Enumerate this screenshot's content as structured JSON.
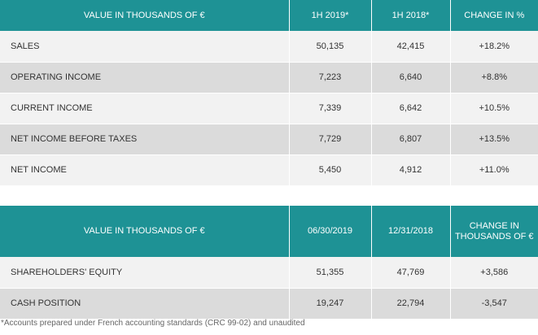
{
  "income_table": {
    "headers": [
      "VALUE IN THOUSANDS OF €",
      "1H 2019*",
      "1H 2018*",
      "CHANGE IN %"
    ],
    "rows": [
      {
        "label": "SALES",
        "h1_2019": "50,135",
        "h1_2018": "42,415",
        "change": "+18.2%"
      },
      {
        "label": "OPERATING INCOME",
        "h1_2019": "7,223",
        "h1_2018": "6,640",
        "change": "+8.8%"
      },
      {
        "label": "CURRENT INCOME",
        "h1_2019": "7,339",
        "h1_2018": "6,642",
        "change": "+10.5%"
      },
      {
        "label": "NET INCOME BEFORE TAXES",
        "h1_2019": "7,729",
        "h1_2018": "6,807",
        "change": "+13.5%"
      },
      {
        "label": "NET INCOME",
        "h1_2019": "5,450",
        "h1_2018": "4,912",
        "change": "+11.0%"
      }
    ]
  },
  "balance_table": {
    "headers": [
      "VALUE IN THOUSANDS OF €",
      "06/30/2019",
      "12/31/2018",
      "CHANGE IN THOUSANDS OF €"
    ],
    "rows": [
      {
        "label": "SHAREHOLDERS' EQUITY",
        "d2019": "51,355",
        "d2018": "47,769",
        "change": "+3,586"
      },
      {
        "label": "CASH POSITION",
        "d2019": "19,247",
        "d2018": "22,794",
        "change": "-3,547"
      }
    ]
  },
  "footnote": "*Accounts prepared under French accounting standards (CRC 99-02) and unaudited",
  "colors": {
    "header_bg": "#1e9295",
    "row_light": "#f2f2f2",
    "row_dark": "#dbdbdb"
  }
}
